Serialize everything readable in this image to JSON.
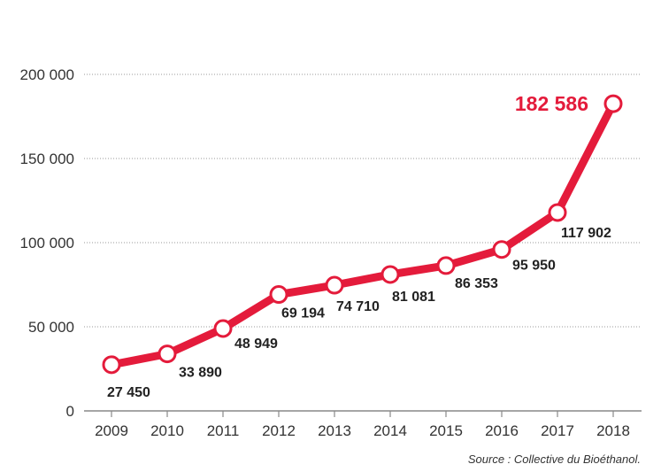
{
  "chart_data": {
    "type": "line",
    "title": "",
    "xlabel": "",
    "ylabel": "",
    "categories": [
      "2009",
      "2010",
      "2011",
      "2012",
      "2013",
      "2014",
      "2015",
      "2016",
      "2017",
      "2018"
    ],
    "values": [
      27450,
      33890,
      48949,
      69194,
      74710,
      81081,
      86353,
      95950,
      117902,
      182586
    ],
    "value_labels": [
      "27 450",
      "33 890",
      "48 949",
      "69 194",
      "74 710",
      "81 081",
      "86 353",
      "95 950",
      "117 902",
      "182 586"
    ],
    "highlighted_index": 9,
    "ylim": [
      0,
      200000
    ],
    "yticks": [
      0,
      50000,
      100000,
      150000,
      200000
    ],
    "ytick_labels": [
      "0",
      "50 000",
      "100 000",
      "150 000",
      "200 000"
    ],
    "grid": "horizontal dotted",
    "colors": {
      "line": "#e41b3b",
      "highlight_label": "#e41b3b",
      "text": "#222222",
      "grid": "#999999"
    },
    "source": "Source : Collective du Bioéthanol."
  }
}
